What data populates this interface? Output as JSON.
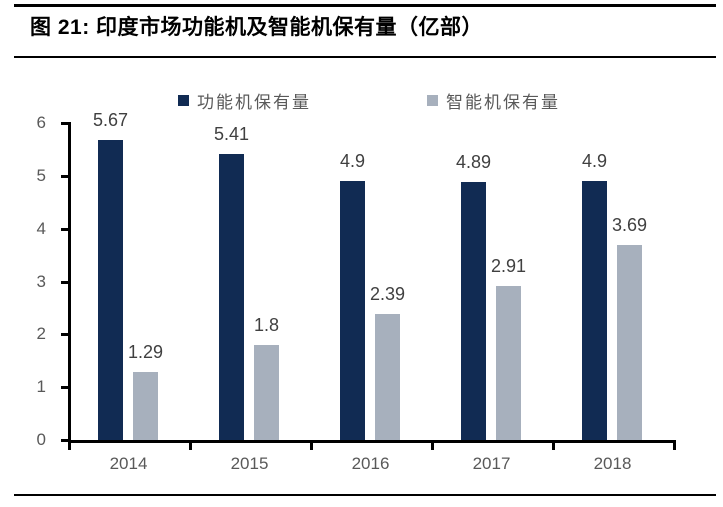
{
  "header": {
    "title": "图 21:  印度市场功能机及智能机保有量（亿部）"
  },
  "chart_data": {
    "type": "bar",
    "title": "印度市场功能机及智能机保有量（亿部）",
    "categories": [
      "2014",
      "2015",
      "2016",
      "2017",
      "2018"
    ],
    "series": [
      {
        "name": "功能机保有量",
        "color": "#112B53",
        "values": [
          5.67,
          5.41,
          4.9,
          4.89,
          4.9
        ]
      },
      {
        "name": "智能机保有量",
        "color": "#A7B0BD",
        "values": [
          1.29,
          1.8,
          2.39,
          2.91,
          3.69
        ]
      }
    ],
    "xlabel": "",
    "ylabel": "",
    "ylim": [
      0,
      6
    ],
    "yticks": [
      0,
      1,
      2,
      3,
      4,
      5,
      6
    ],
    "grid": false,
    "legend_position": "top"
  },
  "colors": {
    "series1": "#112B53",
    "series2": "#A7B0BD",
    "axis": "#000000",
    "tick_label": "#595959",
    "data_label": "#404040",
    "rule": "#000000"
  }
}
